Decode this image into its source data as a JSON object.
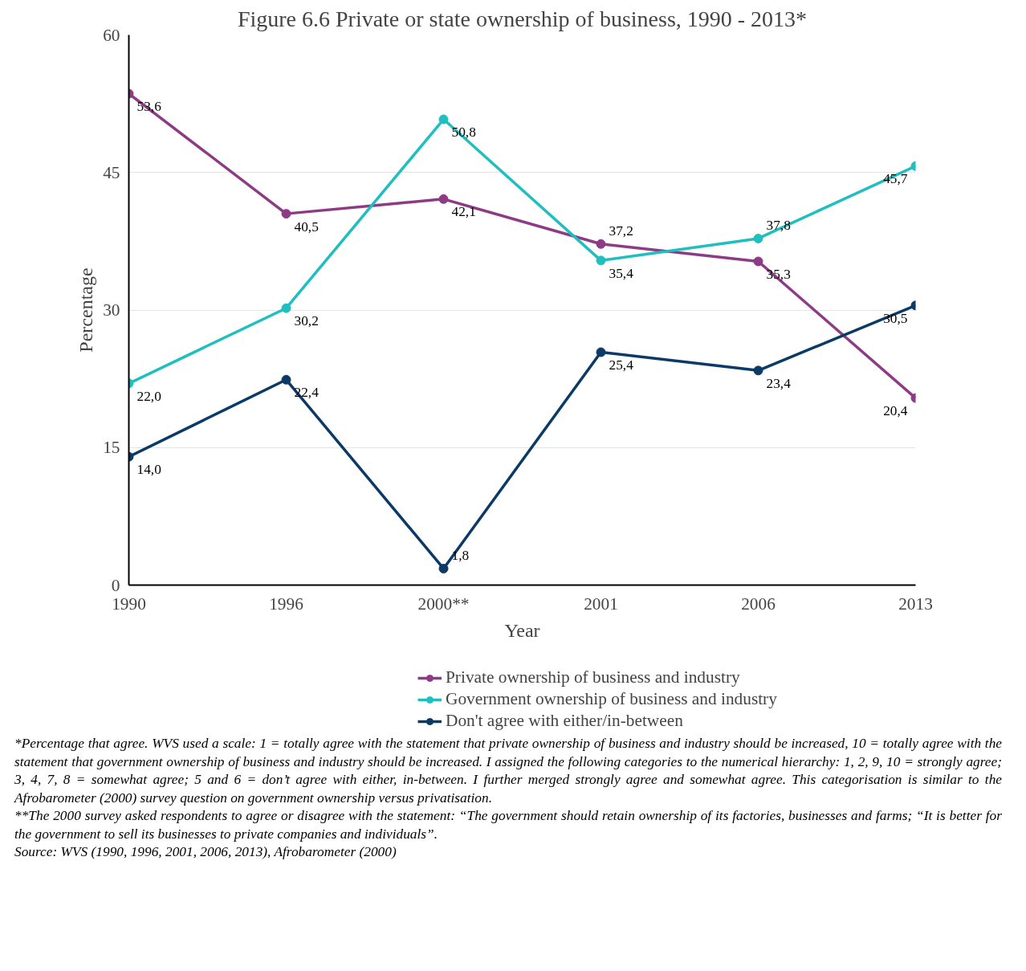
{
  "chart_data": {
    "type": "line",
    "title": "Figure 6.6 Private or state ownership of business, 1990 - 2013*",
    "xlabel": "Year",
    "ylabel": "Percentage",
    "categories": [
      "1990",
      "1996",
      "2000**",
      "2001",
      "2006",
      "2013"
    ],
    "ylim": [
      0,
      60
    ],
    "yticks": [
      0,
      15,
      30,
      45,
      60
    ],
    "grid": "y",
    "legend": "bottom",
    "marker": "circle",
    "line_style": "solid",
    "series": [
      {
        "name": "Private ownership of business and industry",
        "color": "#8e3b85",
        "values": [
          53.6,
          40.5,
          42.1,
          37.2,
          35.3,
          20.4
        ],
        "value_labels": [
          "53,6",
          "40,5",
          "42,1",
          "37,2",
          "35,3",
          "20,4"
        ]
      },
      {
        "name": "Government ownership of business and industry",
        "color": "#1fbfbf",
        "values": [
          22.0,
          30.2,
          50.8,
          35.4,
          37.8,
          45.7
        ],
        "value_labels": [
          "22,0",
          "30,2",
          "50,8",
          "35,4",
          "37,8",
          "45,7"
        ]
      },
      {
        "name": "Don't agree with either/in-between",
        "color": "#0b3a66",
        "values": [
          14.0,
          22.4,
          1.8,
          25.4,
          23.4,
          30.5
        ],
        "value_labels": [
          "14,0",
          "22,4",
          "1,8",
          "25,4",
          "23,4",
          "30,5"
        ]
      }
    ],
    "annotations": [
      "*Percentage that agree. WVS used a scale: 1 = totally agree with the statement that private ownership of business and industry should be increased, 10 = totally agree with the statement that government ownership of business and industry should be increased. I assigned the following categories to the numerical hierarchy: 1, 2, 9, 10 = strongly agree; 3, 4, 7, 8 = somewhat agree; 5 and 6 = don’t agree with either, in-between. I further merged strongly agree and somewhat agree. This categorisation is similar to the Afrobarometer (2000) survey question on government ownership versus privatisation.",
      "**The 2000 survey asked respondents to agree or disagree with the statement: “The government should retain ownership of its factories, businesses and farms; “It is better for the government to sell its businesses to private companies and individuals”.",
      "Source: WVS (1990, 1996, 2001, 2006, 2013), Afrobarometer (2000)"
    ]
  }
}
